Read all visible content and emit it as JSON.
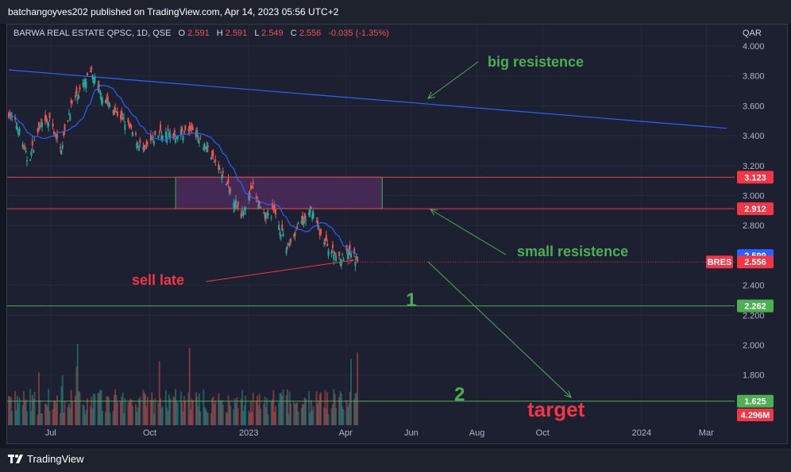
{
  "header": {
    "publisher": "batchangoyves202 published on TradingView.com, Apr 14, 2023 05:56 UTC+2"
  },
  "legend": {
    "symbol": "BARWA REAL ESTATE QPSC, 1D, QSE",
    "o_label": "O",
    "o_value": "2.591",
    "h_label": "H",
    "h_value": "2.591",
    "l_label": "L",
    "l_value": "2.549",
    "c_label": "C",
    "c_value": "2.556",
    "change": "-0.035 (-1.35%)"
  },
  "footer": {
    "brand": "TradingView"
  },
  "colors": {
    "up": "#26a69a",
    "down": "#ef5350",
    "ma": "#2962ff",
    "trendline": "#2962ff",
    "green_line": "#4caf50",
    "red_line": "#f23645",
    "box_fill": "#4a2c5a",
    "box_border": "#4caf50"
  },
  "chart_data": {
    "type": "candlestick",
    "symbol": "BARWA REAL ESTATE QPSC",
    "interval": "1D",
    "exchange": "QSE",
    "currency": "QAR",
    "ylim": [
      1.35,
      4.05
    ],
    "y_ticks": [
      "4.000",
      "3.800",
      "3.600",
      "3.400",
      "3.200",
      "3.000",
      "2.800",
      "2.400",
      "2.200",
      "2.000",
      "1.800"
    ],
    "x_ticks": [
      "Jul",
      "Oct",
      "2023",
      "Apr",
      "Jun",
      "Aug",
      "Oct",
      "2024",
      "Mar"
    ],
    "anchor_closes": [
      [
        "2022-05-23",
        3.55
      ],
      [
        "2022-06-01",
        3.45
      ],
      [
        "2022-06-10",
        3.22
      ],
      [
        "2022-06-20",
        3.45
      ],
      [
        "2022-07-01",
        3.5
      ],
      [
        "2022-07-10",
        3.3
      ],
      [
        "2022-07-20",
        3.6
      ],
      [
        "2022-07-28",
        3.7
      ],
      [
        "2022-08-08",
        3.82
      ],
      [
        "2022-08-15",
        3.7
      ],
      [
        "2022-08-25",
        3.6
      ],
      [
        "2022-09-10",
        3.48
      ],
      [
        "2022-09-25",
        3.3
      ],
      [
        "2022-10-10",
        3.42
      ],
      [
        "2022-10-25",
        3.4
      ],
      [
        "2022-11-10",
        3.45
      ],
      [
        "2022-11-25",
        3.3
      ],
      [
        "2022-12-10",
        3.1
      ],
      [
        "2022-12-25",
        2.88
      ],
      [
        "2023-01-05",
        3.05
      ],
      [
        "2023-01-15",
        2.85
      ],
      [
        "2023-01-25",
        2.9
      ],
      [
        "2023-02-05",
        2.65
      ],
      [
        "2023-02-15",
        2.78
      ],
      [
        "2023-03-01",
        2.9
      ],
      [
        "2023-03-10",
        2.72
      ],
      [
        "2023-03-20",
        2.62
      ],
      [
        "2023-03-28",
        2.58
      ],
      [
        "2023-04-06",
        2.62
      ],
      [
        "2023-04-12",
        2.556
      ]
    ],
    "volume_max": "4.296M",
    "last_volume": "4.296M",
    "price_labels": {
      "resistance_top": "3.123",
      "resistance_bottom": "2.912",
      "ma_value": "2.599",
      "last": "2.556",
      "ticker": "BRES",
      "target_1": "2.262",
      "target_2": "1.625",
      "volume": "4.296M"
    },
    "drawings": {
      "trendline": {
        "from": [
          "2022-05-23",
          3.84
        ],
        "to": [
          "2024-03-20",
          3.45
        ]
      },
      "zone": {
        "from_date": "2022-10-25",
        "to_date": "2023-05-05",
        "top": 3.123,
        "bottom": 2.912
      },
      "horizontal_lines": [
        {
          "price": 3.123,
          "color": "red"
        },
        {
          "price": 2.912,
          "color": "red"
        },
        {
          "price": 2.262,
          "color": "green"
        },
        {
          "price": 1.625,
          "color": "green"
        }
      ]
    },
    "annotations": {
      "big_resistance": "big resistence",
      "small_resistance": "small resistence",
      "sell_late": "sell late",
      "target": "target",
      "level_1": "1",
      "level_2": "2"
    }
  }
}
